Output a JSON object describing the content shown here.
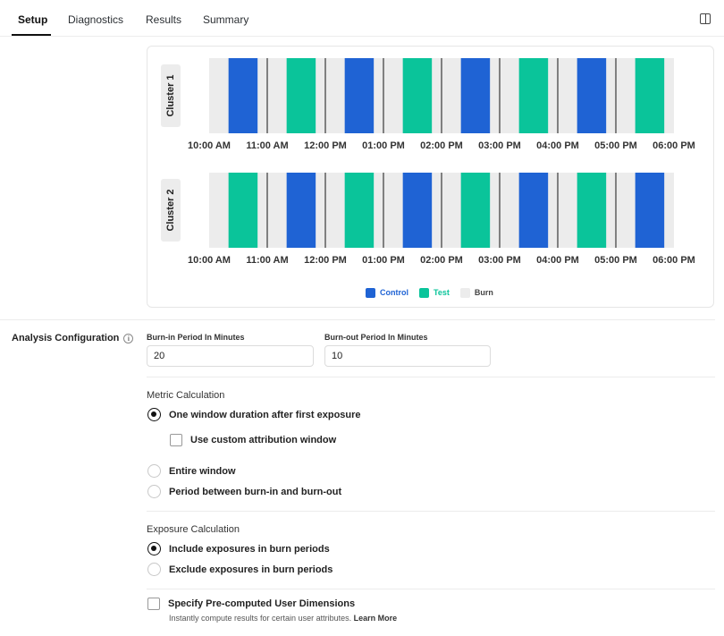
{
  "tabs": [
    {
      "label": "Setup",
      "active": true
    },
    {
      "label": "Diagnostics",
      "active": false
    },
    {
      "label": "Results",
      "active": false
    },
    {
      "label": "Summary",
      "active": false
    }
  ],
  "toolbar": {
    "panel_icon": "panel-toggle-icon"
  },
  "colors": {
    "control": "#1f63d4",
    "test": "#0ac49a",
    "burn": "#ececec",
    "divider": "#3a3a3a"
  },
  "chart_data": {
    "type": "timeline",
    "x_ticks": [
      "10:00 AM",
      "11:00 AM",
      "12:00 PM",
      "01:00 PM",
      "02:00 PM",
      "03:00 PM",
      "04:00 PM",
      "05:00 PM",
      "06:00 PM"
    ],
    "clusters": [
      {
        "label": "Cluster 1",
        "periods": [
          "Control",
          "Test",
          "Control",
          "Test",
          "Control",
          "Test",
          "Control",
          "Test"
        ]
      },
      {
        "label": "Cluster 2",
        "periods": [
          "Test",
          "Control",
          "Test",
          "Control",
          "Test",
          "Control",
          "Test",
          "Control"
        ]
      }
    ],
    "legend": [
      "Control",
      "Test",
      "Burn"
    ]
  },
  "analysis": {
    "section_label": "Analysis Configuration",
    "burn_in_label": "Burn-in Period In Minutes",
    "burn_in_value": "20",
    "burn_out_label": "Burn-out Period In Minutes",
    "burn_out_value": "10",
    "metric_calc_title": "Metric Calculation",
    "metric_options": [
      {
        "label": "One window duration after first exposure",
        "checked": true
      },
      {
        "label": "Entire window",
        "checked": false
      },
      {
        "label": "Period between burn-in and burn-out",
        "checked": false
      }
    ],
    "custom_attribution_label": "Use custom attribution window",
    "exposure_calc_title": "Exposure Calculation",
    "exposure_options": [
      {
        "label": "Include exposures in burn periods",
        "checked": true
      },
      {
        "label": "Exclude exposures in burn periods",
        "checked": false
      }
    ],
    "precomputed_label": "Specify Pre-computed User Dimensions",
    "precomputed_help": "Instantly compute results for certain user attributes.",
    "learn_more": "Learn More"
  }
}
